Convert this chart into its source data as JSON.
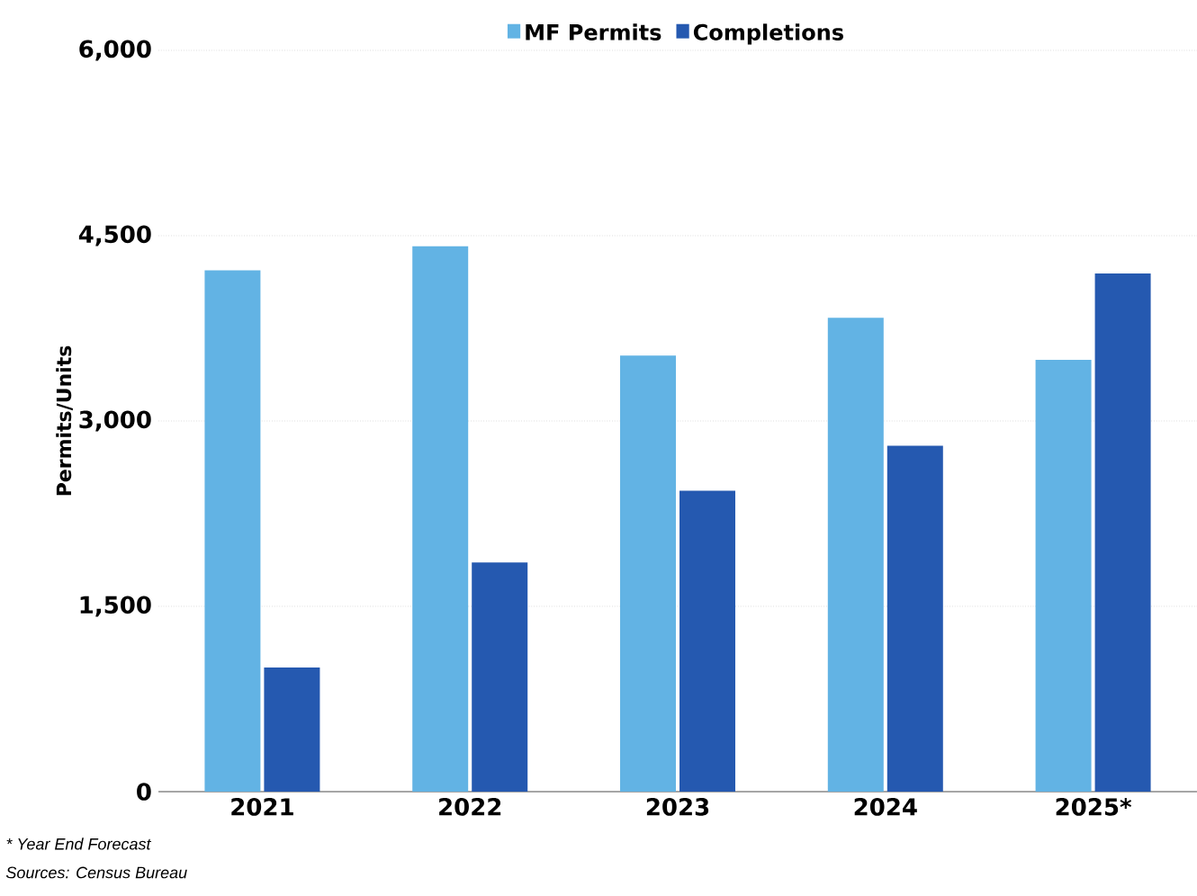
{
  "chart_data": {
    "type": "bar",
    "ylabel": "Permits/Units",
    "categories": [
      "2021",
      "2022",
      "2023",
      "2024",
      "2025*"
    ],
    "series": [
      {
        "name": "MF Permits",
        "color": "#62b3e4",
        "values": [
          4220,
          4415,
          3530,
          3835,
          3495
        ]
      },
      {
        "name": "Completions",
        "color": "#2559b0",
        "values": [
          1005,
          1855,
          2435,
          2800,
          4195
        ]
      }
    ],
    "ylim": [
      0,
      6000
    ],
    "yticks": [
      {
        "value": 0,
        "label": "0"
      },
      {
        "value": 1500,
        "label": "1,500"
      },
      {
        "value": 3000,
        "label": "3,000"
      },
      {
        "value": 4500,
        "label": "4,500"
      },
      {
        "value": 6000,
        "label": "6,000"
      }
    ],
    "grid": "y",
    "legend": "top",
    "annotations": [
      "* Year End Forecast",
      "Sources: Census Bureau"
    ]
  }
}
